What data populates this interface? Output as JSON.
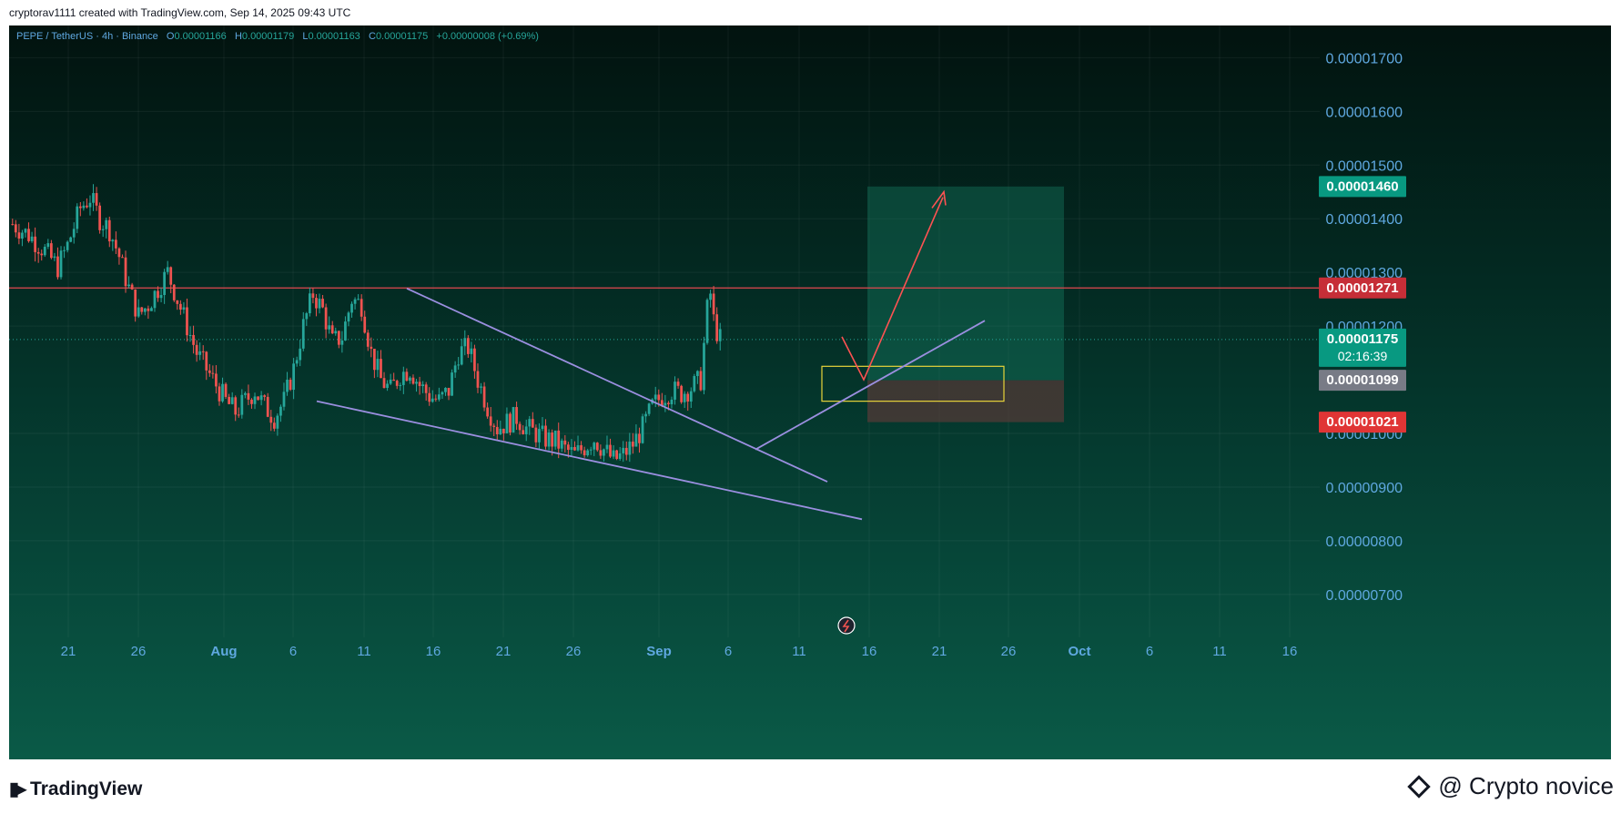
{
  "header": {
    "created_text": "cryptorav1111 created with TradingView.com, Sep 14, 2025 09:43 UTC"
  },
  "legend": {
    "symbol": "PEPE / TetherUS · 4h · Binance",
    "o_label": "O",
    "o": "0.00001166",
    "h_label": "H",
    "h": "0.00001179",
    "l_label": "L",
    "l": "0.00001163",
    "c_label": "C",
    "c": "0.00001175",
    "change": "+0.00000008 (+0.69%)"
  },
  "footer": {
    "brand": "TradingView",
    "watermark": "@ Crypto novice"
  },
  "colors": {
    "up": "#26a69a",
    "down": "#ef5350",
    "axis_text": "#5fa8e0",
    "pattern_line": "#9b8fe0",
    "resistance": "#e0484f",
    "target_zone": "#1a8a6e",
    "stop_zone": "#6e3b3b",
    "entry_box": "#e8d43a",
    "arrow": "#ff5252"
  },
  "chart_data": {
    "type": "candlestick",
    "timeframe": "4h",
    "x_ticks": [
      "21",
      "26",
      "Aug",
      "6",
      "11",
      "16",
      "21",
      "26",
      "Sep",
      "6",
      "11",
      "16",
      "21",
      "26",
      "Oct",
      "6",
      "11",
      "16"
    ],
    "y_ticks": [
      "0.00001700",
      "0.00001600",
      "0.00001500",
      "0.00001400",
      "0.00001300",
      "0.00001200",
      "0.00001000",
      "0.00000900",
      "0.00000800",
      "0.00000700"
    ],
    "y_tick_values": [
      1.7e-05,
      1.6e-05,
      1.5e-05,
      1.4e-05,
      1.3e-05,
      1.2e-05,
      1e-05,
      9e-06,
      8e-06,
      7e-06
    ],
    "ylim": [
      6.2e-06,
      1.76e-05
    ],
    "price_labels": [
      {
        "text": "0.00001460",
        "value": 1.46e-05,
        "color": "#089981"
      },
      {
        "text": "0.00001271",
        "value": 1.271e-05,
        "color": "#c62e37"
      },
      {
        "text": "0.00001175",
        "sub": "02:16:39",
        "value": 1.175e-05,
        "color": "#089981"
      },
      {
        "text": "0.00001099",
        "value": 1.099e-05,
        "color": "#787b86"
      },
      {
        "text": "0.00001021",
        "value": 1.021e-05,
        "color": "#e03535"
      }
    ],
    "price_path": [
      [
        0,
        1.39e-05
      ],
      [
        5,
        1.37e-05
      ],
      [
        10,
        1.34e-05
      ],
      [
        14,
        1.31e-05
      ],
      [
        17,
        1.35e-05
      ],
      [
        21,
        1.42e-05
      ],
      [
        24,
        1.44e-05
      ],
      [
        27,
        1.4e-05
      ],
      [
        30,
        1.38e-05
      ],
      [
        33,
        1.33e-05
      ],
      [
        36,
        1.27e-05
      ],
      [
        39,
        1.22e-05
      ],
      [
        42,
        1.24e-05
      ],
      [
        45,
        1.27e-05
      ],
      [
        48,
        1.3e-05
      ],
      [
        51,
        1.25e-05
      ],
      [
        54,
        1.2e-05
      ],
      [
        57,
        1.15e-05
      ],
      [
        60,
        1.12e-05
      ],
      [
        63,
        1.09e-05
      ],
      [
        66,
        1.06e-05
      ],
      [
        69,
        1.04e-05
      ],
      [
        72,
        1.06e-05
      ],
      [
        75,
        1.08e-05
      ],
      [
        78,
        1.05e-05
      ],
      [
        81,
        1.03e-05
      ],
      [
        84,
        1.06e-05
      ],
      [
        87,
        1.12e-05
      ],
      [
        90,
        1.2e-05
      ],
      [
        93,
        1.26e-05
      ],
      [
        96,
        1.23e-05
      ],
      [
        99,
        1.17e-05
      ],
      [
        102,
        1.18e-05
      ],
      [
        105,
        1.25e-05
      ],
      [
        108,
        1.24e-05
      ],
      [
        111,
        1.15e-05
      ],
      [
        114,
        1.1e-05
      ],
      [
        117,
        1.08e-05
      ],
      [
        120,
        1.11e-05
      ],
      [
        123,
        1.12e-05
      ],
      [
        126,
        1.09e-05
      ],
      [
        129,
        1.07e-05
      ],
      [
        132,
        1.06e-05
      ],
      [
        135,
        1.08e-05
      ],
      [
        138,
        1.15e-05
      ],
      [
        141,
        1.16e-05
      ],
      [
        144,
        1.1e-05
      ],
      [
        147,
        1.05e-05
      ],
      [
        150,
        1.01e-05
      ],
      [
        153,
        1.02e-05
      ],
      [
        156,
        1.03e-05
      ],
      [
        159,
        1.01e-05
      ],
      [
        162,
        1e-05
      ],
      [
        165,
        9.9e-06
      ],
      [
        168,
        9.85e-06
      ],
      [
        171,
        9.7e-06
      ],
      [
        174,
        9.6e-06
      ],
      [
        177,
        9.75e-06
      ],
      [
        180,
        9.9e-06
      ],
      [
        183,
        9.7e-06
      ],
      [
        186,
        9.5e-06
      ],
      [
        189,
        9.6e-06
      ],
      [
        192,
        9.8e-06
      ],
      [
        195,
        1.01e-05
      ],
      [
        198,
        1.05e-05
      ],
      [
        201,
        1.07e-05
      ],
      [
        204,
        1.08e-05
      ],
      [
        207,
        1.075e-05
      ],
      [
        210,
        1.085e-05
      ],
      [
        213,
        1.1e-05
      ],
      [
        215,
        1.23e-05
      ],
      [
        216,
        1.26e-05
      ],
      [
        217,
        1.21e-05
      ],
      [
        218,
        1.19e-05
      ],
      [
        219,
        1.175e-05
      ]
    ],
    "resistance_level": 1.271e-05,
    "current_price": 1.175e-05
  }
}
